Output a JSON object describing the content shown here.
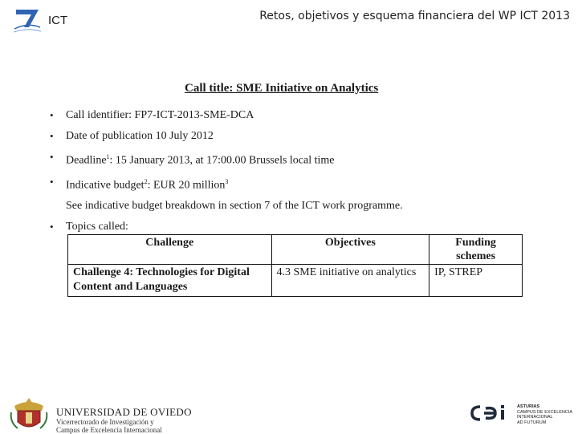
{
  "header": {
    "program_label": "ICT",
    "slide_title": "Retos, objetivos y esquema financiera del WP ICT 2013"
  },
  "call": {
    "title": "Call title: SME Initiative on Analytics",
    "identifier": "Call identifier: FP7-ICT-2013-SME-DCA",
    "publication": "Date of publication 10 July 2012",
    "deadline_label": "Deadline",
    "deadline_sup": "1",
    "deadline_value": ": 15 January 2013, at 17:00.00 Brussels local time",
    "budget_label": "Indicative budget",
    "budget_sup1": "2",
    "budget_value": ": EUR 20 million",
    "budget_sup2": "3",
    "budget_note": "See indicative budget breakdown in section 7 of the ICT work programme.",
    "topics_label": "Topics called:"
  },
  "topics_table": {
    "headers": [
      "Challenge",
      "Objectives",
      "Funding schemes"
    ],
    "rows": [
      [
        "Challenge 4: Technologies for Digital Content and Languages",
        "4.3 SME initiative on analytics",
        "IP, STREP"
      ]
    ]
  },
  "footer": {
    "university_name": "UNIVERSIDAD DE OVIEDO",
    "university_sub1": "Vicerrectorado de Investigación y",
    "university_sub2": "Campus de Excelencia Internacional",
    "cei_line1": "ASTURIAS",
    "cei_line2": "CAMPUS DE EXCELENCIA",
    "cei_line3": "INTERNACIONAL",
    "cei_line4": "AD FUTURUM"
  },
  "colors": {
    "fp7_blue": "#2f64b3",
    "cei_dark": "#1f2a3a",
    "crest_gold": "#c9a23a"
  }
}
